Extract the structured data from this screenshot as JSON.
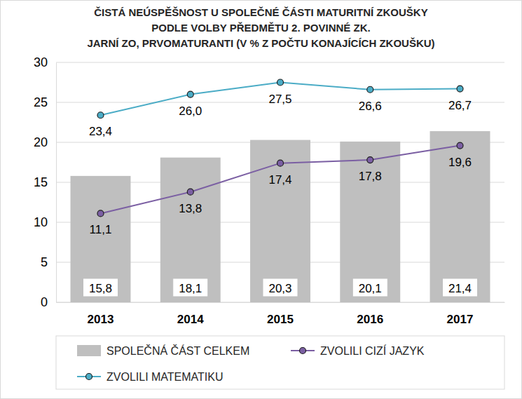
{
  "chart_data": {
    "type": "bar",
    "title": [
      "ČISTÁ NEÚSPĚŠNOST U SPOLEČNÉ ČÁSTI MATURITNÍ ZKOUŠKY",
      "PODLE VOLBY PŘEDMĚTU 2. POVINNÉ ZK.",
      "JARNÍ ZO, PRVOMATURANTI (V % Z POČTU KONAJÍCÍCH ZKOUŠKU)"
    ],
    "categories": [
      "2013",
      "2014",
      "2015",
      "2016",
      "2017"
    ],
    "series": [
      {
        "name": "SPOLEČNÁ ČÁST CELKEM",
        "type": "bar",
        "color": "#bfbfbf",
        "values": [
          15.8,
          18.1,
          20.3,
          20.1,
          21.4
        ],
        "value_labels": [
          "15,8",
          "18,1",
          "20,3",
          "20,1",
          "21,4"
        ]
      },
      {
        "name": "ZVOLILI CIZÍ JAZYK",
        "type": "line",
        "color": "#7b5fa3",
        "marker": "circle",
        "values": [
          11.1,
          13.8,
          17.4,
          17.8,
          19.6
        ],
        "value_labels": [
          "11,1",
          "13,8",
          "17,4",
          "17,8",
          "19,6"
        ]
      },
      {
        "name": "ZVOLILI MATEMATIKU",
        "type": "line",
        "color": "#4bacc6",
        "marker": "circle",
        "values": [
          23.4,
          26.0,
          27.5,
          26.6,
          26.7
        ],
        "value_labels": [
          "23,4",
          "26,0",
          "27,5",
          "26,6",
          "26,7"
        ]
      }
    ],
    "ylim": [
      0,
      30
    ],
    "yticks": [
      0,
      5,
      10,
      15,
      20,
      25,
      30
    ],
    "grid": true,
    "data_labels": true,
    "legend": "bottom"
  }
}
